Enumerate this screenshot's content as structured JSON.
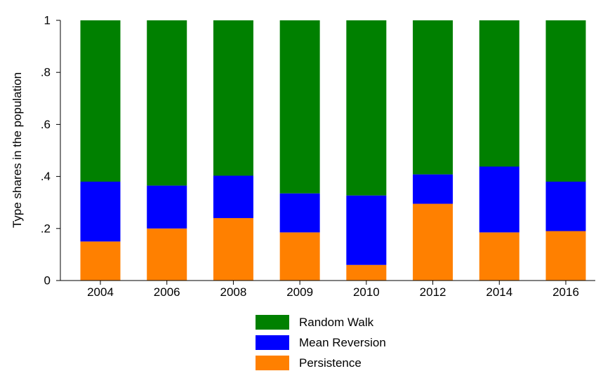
{
  "chart_data": {
    "type": "bar",
    "stacked": true,
    "categories": [
      "2004",
      "2006",
      "2008",
      "2009",
      "2010",
      "2012",
      "2014",
      "2016"
    ],
    "series": [
      {
        "name": "Persistence",
        "color": "#ff8000",
        "values": [
          0.15,
          0.2,
          0.24,
          0.185,
          0.06,
          0.295,
          0.185,
          0.19
        ]
      },
      {
        "name": "Mean Reversion",
        "color": "#0000ff",
        "values": [
          0.23,
          0.165,
          0.163,
          0.15,
          0.267,
          0.113,
          0.253,
          0.19
        ]
      },
      {
        "name": "Random Walk",
        "color": "#008000",
        "values": [
          0.62,
          0.635,
          0.597,
          0.665,
          0.673,
          0.592,
          0.562,
          0.62
        ]
      }
    ],
    "ylabel": "Type shares in the population",
    "xlabel": "",
    "ylim": [
      0,
      1
    ],
    "yticks": [
      {
        "value": 0,
        "label": "0"
      },
      {
        "value": 0.2,
        "label": ".2"
      },
      {
        "value": 0.4,
        "label": ".4"
      },
      {
        "value": 0.6,
        "label": ".6"
      },
      {
        "value": 0.8,
        "label": ".8"
      },
      {
        "value": 1,
        "label": "1"
      }
    ],
    "legend": {
      "position": "bottom",
      "order": [
        "Random Walk",
        "Mean Reversion",
        "Persistence"
      ]
    },
    "grid": false
  }
}
